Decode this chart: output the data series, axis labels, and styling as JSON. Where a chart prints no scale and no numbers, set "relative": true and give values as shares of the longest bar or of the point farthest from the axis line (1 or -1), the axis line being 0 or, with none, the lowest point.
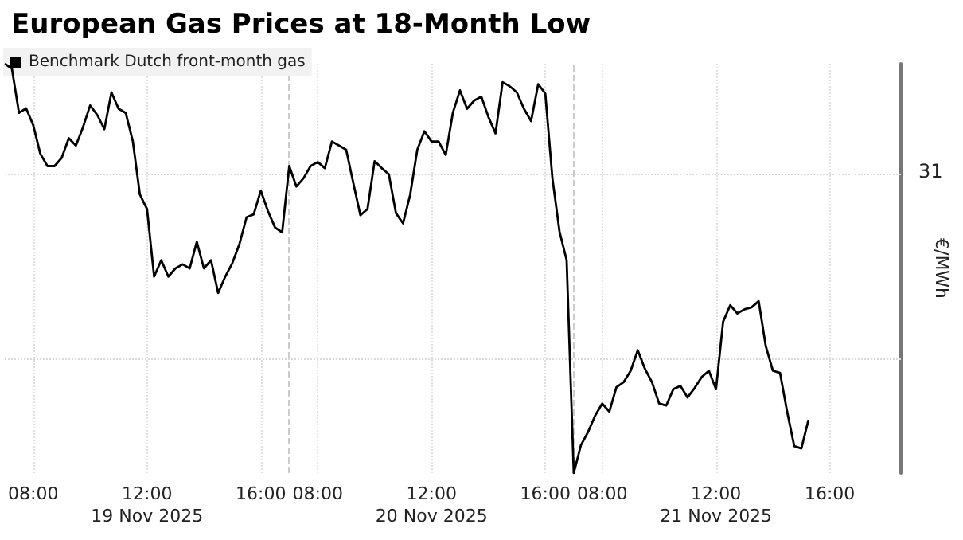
{
  "chart_data": {
    "type": "line",
    "title": "European Gas Prices at 18-Month Low",
    "ylabel": "€/MWh",
    "relative": true,
    "categories": [
      null,
      null,
      null,
      null,
      "08:00",
      null,
      null,
      null,
      null,
      null,
      null,
      null,
      null,
      null,
      null,
      null,
      null,
      null,
      null,
      null,
      "12:00\n19 Nov 2025",
      null,
      null,
      null,
      null,
      null,
      null,
      null,
      null,
      null,
      null,
      null,
      null,
      null,
      null,
      null,
      "16:00",
      null,
      null,
      null,
      null,
      null,
      null,
      null,
      "08:00",
      null,
      null,
      null,
      null,
      null,
      null,
      null,
      null,
      null,
      null,
      null,
      null,
      null,
      null,
      null,
      "12:00\n20 Nov 2025",
      null,
      null,
      null,
      null,
      null,
      null,
      null,
      null,
      null,
      null,
      null,
      null,
      null,
      null,
      null,
      "16:00",
      null,
      null,
      null,
      null,
      null,
      null,
      null,
      "08:00",
      null,
      null,
      null,
      null,
      null,
      null,
      null,
      null,
      null,
      null,
      null,
      null,
      null,
      null,
      null,
      "12:00\n21 Nov 2025",
      null,
      null,
      null,
      null,
      null,
      null,
      null,
      null,
      null,
      null,
      null,
      null,
      null,
      null,
      null,
      "16:00",
      null,
      null,
      null,
      null,
      null,
      null,
      null,
      null,
      null,
      null
    ],
    "series": [
      {
        "name": "Benchmark Dutch front-month gas",
        "color": "#000000",
        "values": [
          1.0,
          0.988,
          0.88,
          0.891,
          0.85,
          0.78,
          0.75,
          0.75,
          0.77,
          0.818,
          0.8,
          0.845,
          0.898,
          0.875,
          0.84,
          0.93,
          0.89,
          0.88,
          0.811,
          0.68,
          0.645,
          0.48,
          0.52,
          0.48,
          0.5,
          0.51,
          0.5,
          0.565,
          0.5,
          0.52,
          0.44,
          0.48,
          0.513,
          0.56,
          0.625,
          0.632,
          0.69,
          0.64,
          0.6,
          0.588,
          0.75,
          0.7,
          0.72,
          0.75,
          0.76,
          0.745,
          0.81,
          0.8,
          0.79,
          0.709,
          0.63,
          0.645,
          0.762,
          0.745,
          0.73,
          0.635,
          0.61,
          0.68,
          0.79,
          0.835,
          0.81,
          0.81,
          0.777,
          0.88,
          0.935,
          0.89,
          0.91,
          0.92,
          0.87,
          0.83,
          0.955,
          0.945,
          0.93,
          0.89,
          0.86,
          0.95,
          0.927,
          0.72,
          0.59,
          0.52,
          0.0,
          0.068,
          0.1,
          0.14,
          0.17,
          0.15,
          0.21,
          0.222,
          0.25,
          0.3,
          0.255,
          0.222,
          0.17,
          0.165,
          0.205,
          0.213,
          0.185,
          0.208,
          0.235,
          0.25,
          0.205,
          0.37,
          0.41,
          0.39,
          0.4,
          0.405,
          0.42,
          0.31,
          0.25,
          0.245,
          0.15,
          0.066,
          0.06,
          0.13,
          null,
          null,
          null,
          null,
          null,
          null,
          null,
          null,
          null,
          null,
          null,
          null,
          null
        ]
      }
    ],
    "ref_lines": [
      {
        "axis": "y",
        "value": 0.733,
        "color": "#d9d9d9",
        "line_style": "dotted"
      },
      {
        "axis": "y",
        "value": 0.279,
        "color": "#d9d9d9",
        "line_style": "dotted"
      }
    ],
    "annotations": [
      "31"
    ],
    "grid": "x",
    "legend": "top left"
  }
}
